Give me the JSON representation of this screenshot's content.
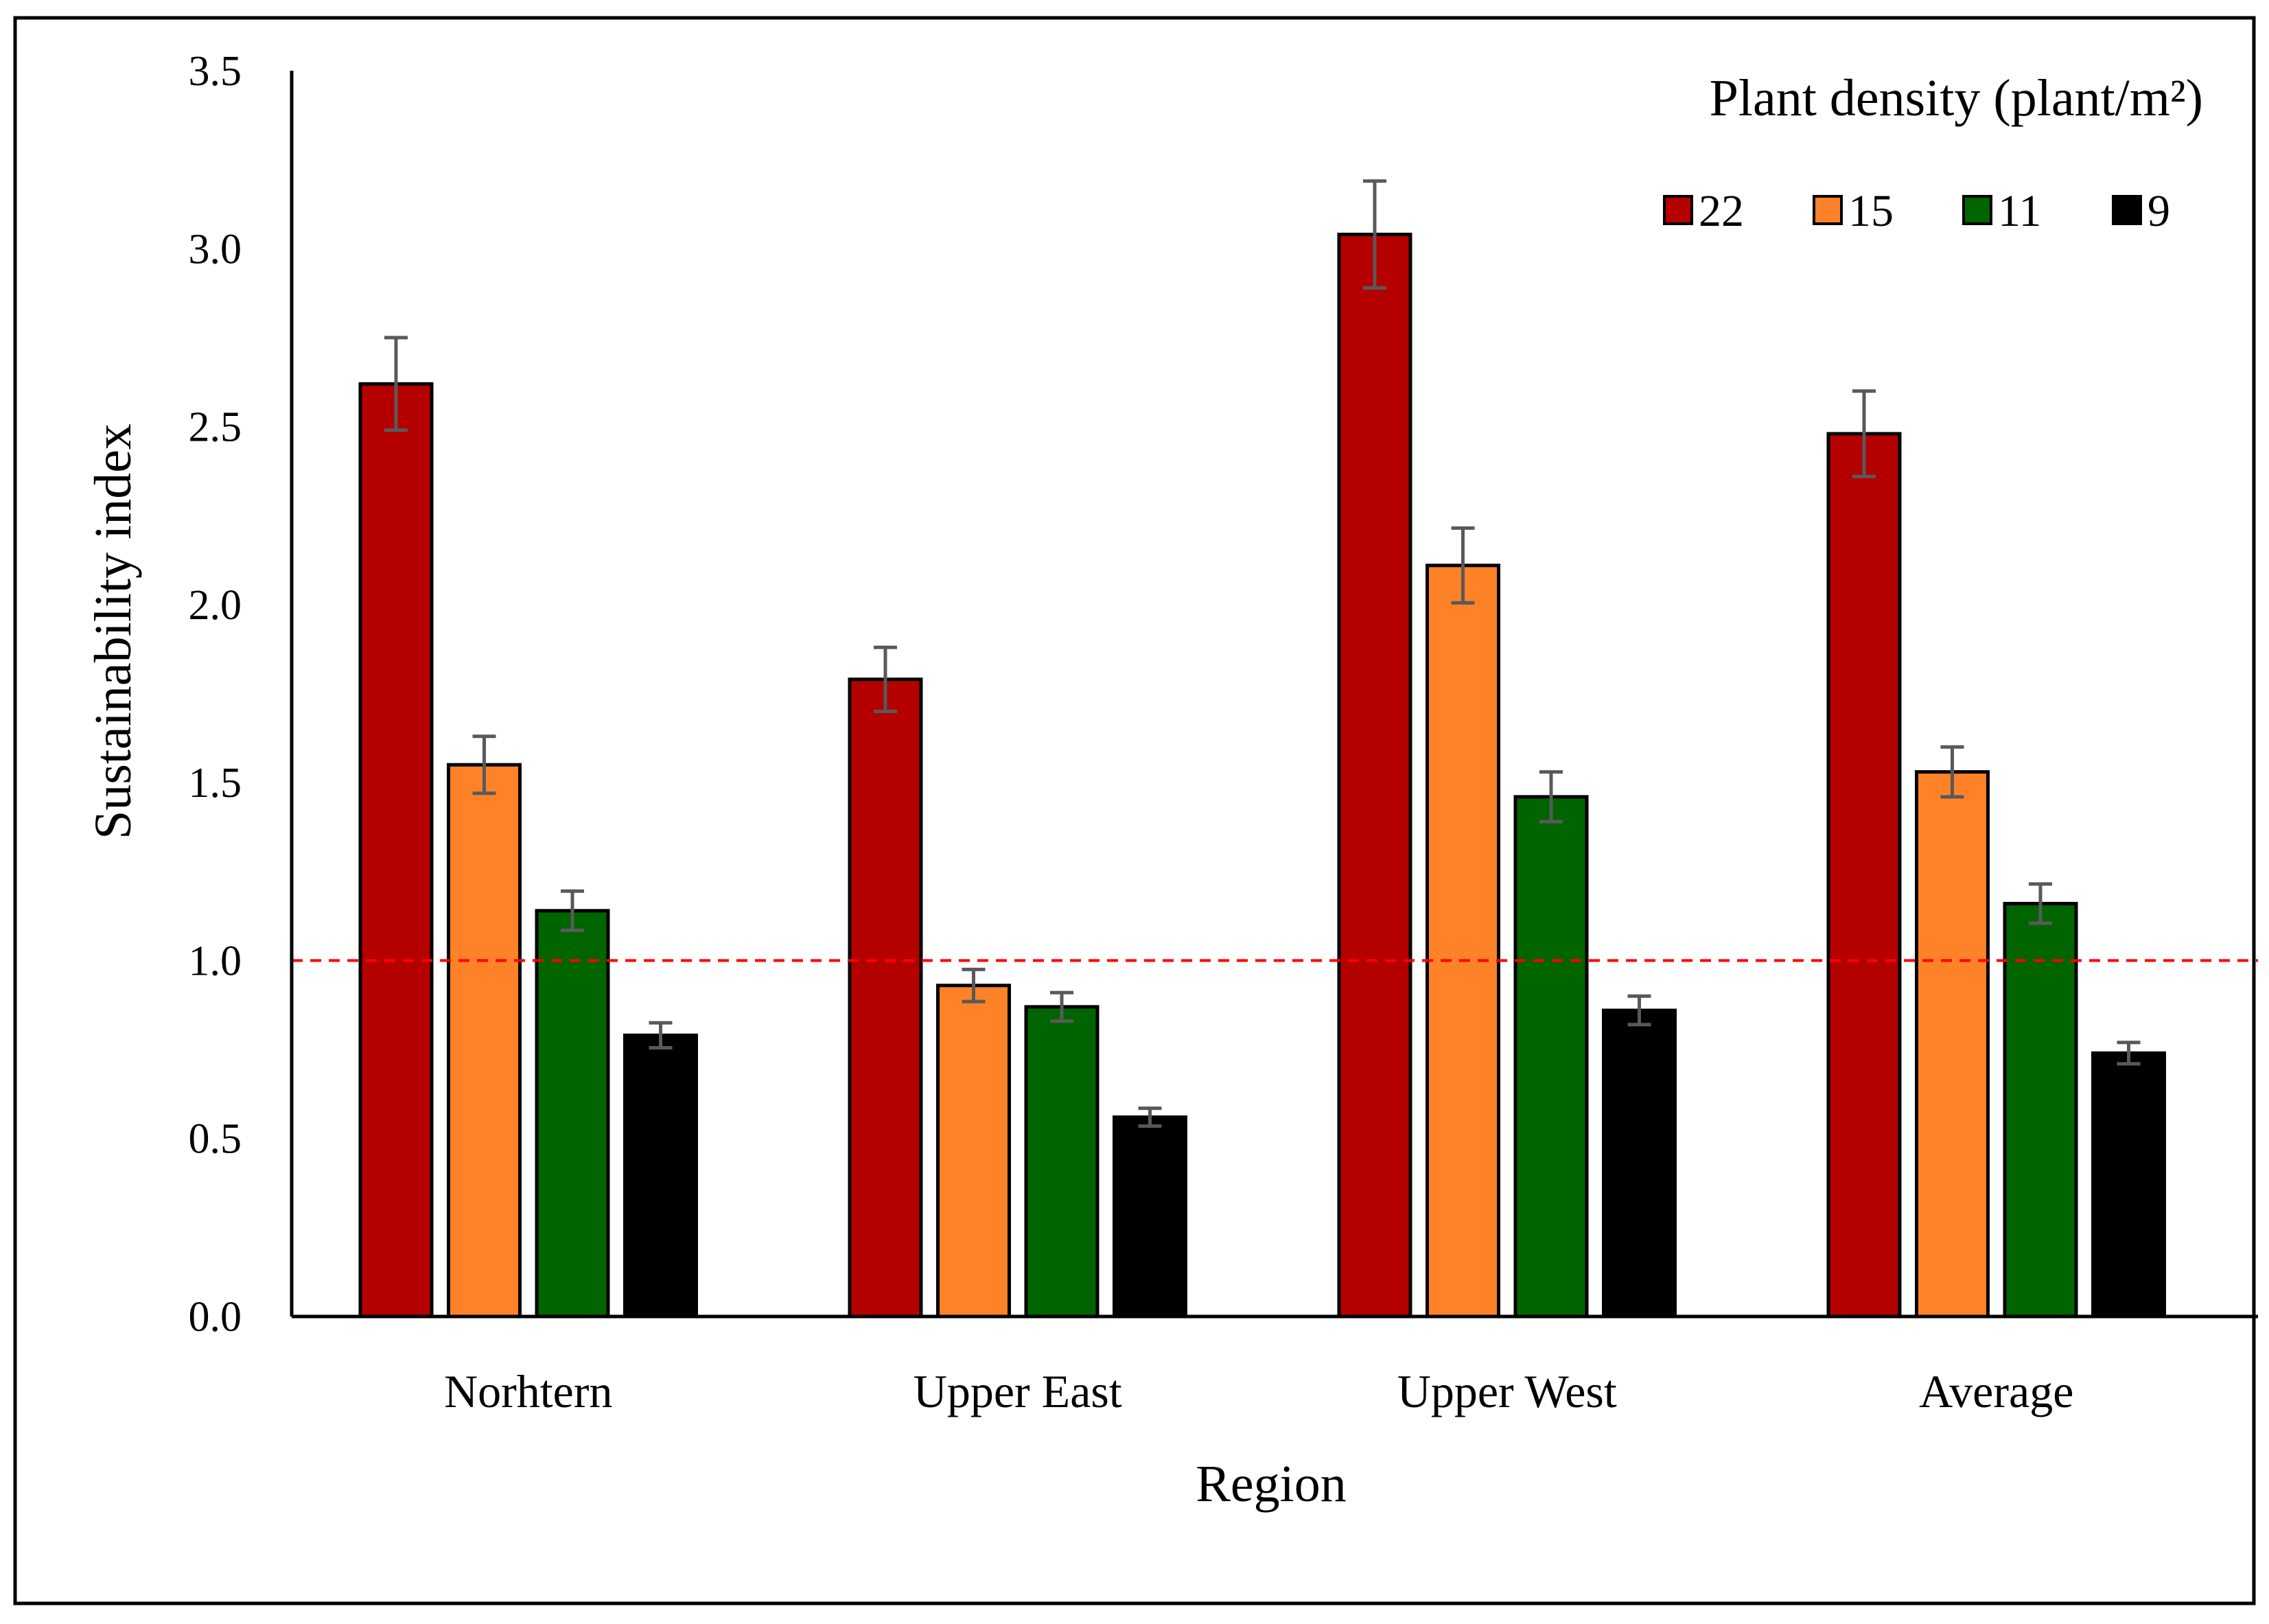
{
  "chart_data": {
    "type": "bar",
    "title": "",
    "xlabel": "Region",
    "ylabel": "Sustainability index",
    "ylim": [
      0,
      3.5
    ],
    "yticks": [
      "0.0",
      "0.5",
      "1.0",
      "1.5",
      "2.0",
      "2.5",
      "3.0",
      "3.5"
    ],
    "categories": [
      "Norhtern",
      "Upper East",
      "Upper West",
      "Average"
    ],
    "legend": {
      "title": "Plant density (plant/m²)",
      "position": "top-right"
    },
    "series": [
      {
        "name": "22",
        "color": "#b50000",
        "values": [
          2.62,
          1.79,
          3.04,
          2.48
        ],
        "errors": [
          0.13,
          0.09,
          0.15,
          0.12
        ]
      },
      {
        "name": "15",
        "color": "#ff8228",
        "values": [
          1.55,
          0.93,
          2.11,
          1.53
        ],
        "errors": [
          0.08,
          0.045,
          0.105,
          0.07
        ]
      },
      {
        "name": "11",
        "color": "#006400",
        "values": [
          1.14,
          0.87,
          1.46,
          1.16
        ],
        "errors": [
          0.055,
          0.04,
          0.07,
          0.055
        ]
      },
      {
        "name": "9",
        "color": "#000000",
        "values": [
          0.79,
          0.56,
          0.86,
          0.74
        ],
        "errors": [
          0.035,
          0.025,
          0.04,
          0.03
        ]
      }
    ],
    "reference_line": {
      "value": 1.0,
      "color": "#ff0000",
      "style": "dashed"
    }
  }
}
